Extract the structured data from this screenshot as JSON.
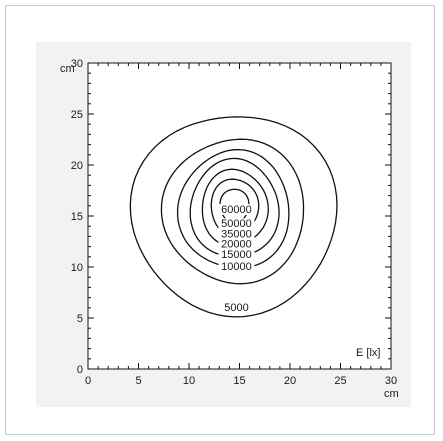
{
  "chart_data": {
    "type": "contour",
    "x_ticks": [
      0,
      5,
      10,
      15,
      20,
      25,
      30
    ],
    "y_ticks": [
      0,
      5,
      10,
      15,
      20,
      25,
      30
    ],
    "xlim": [
      0,
      30
    ],
    "ylim": [
      0,
      30
    ],
    "x_unit": "cm",
    "y_unit": "cm",
    "quantity_label": "E [lx]",
    "center": [
      14.5,
      15.8
    ],
    "levels": [
      {
        "label": "60000",
        "rx": 1.4,
        "ry": 1.7,
        "cy_offset": 0.2
      },
      {
        "label": "50000",
        "rx": 2.3,
        "ry": 2.8,
        "cy_offset": 0.1
      },
      {
        "label": "35000",
        "rx": 3.2,
        "ry": 3.8,
        "cy_offset": 0.0
      },
      {
        "label": "20000",
        "rx": 4.3,
        "ry": 4.9,
        "cy_offset": -0.1
      },
      {
        "label": "15000",
        "rx": 5.4,
        "ry": 5.9,
        "cy_offset": -0.2
      },
      {
        "label": "10000",
        "rx": 6.9,
        "ry": 7.2,
        "cy_offset": -0.3
      },
      {
        "label": "5000",
        "rx": 10.0,
        "ry": 10.0,
        "cy_offset": -0.6
      }
    ],
    "label_positions_y": [
      15.3,
      13.9,
      12.9,
      11.9,
      10.9,
      9.7,
      5.7
    ],
    "grid": false
  }
}
